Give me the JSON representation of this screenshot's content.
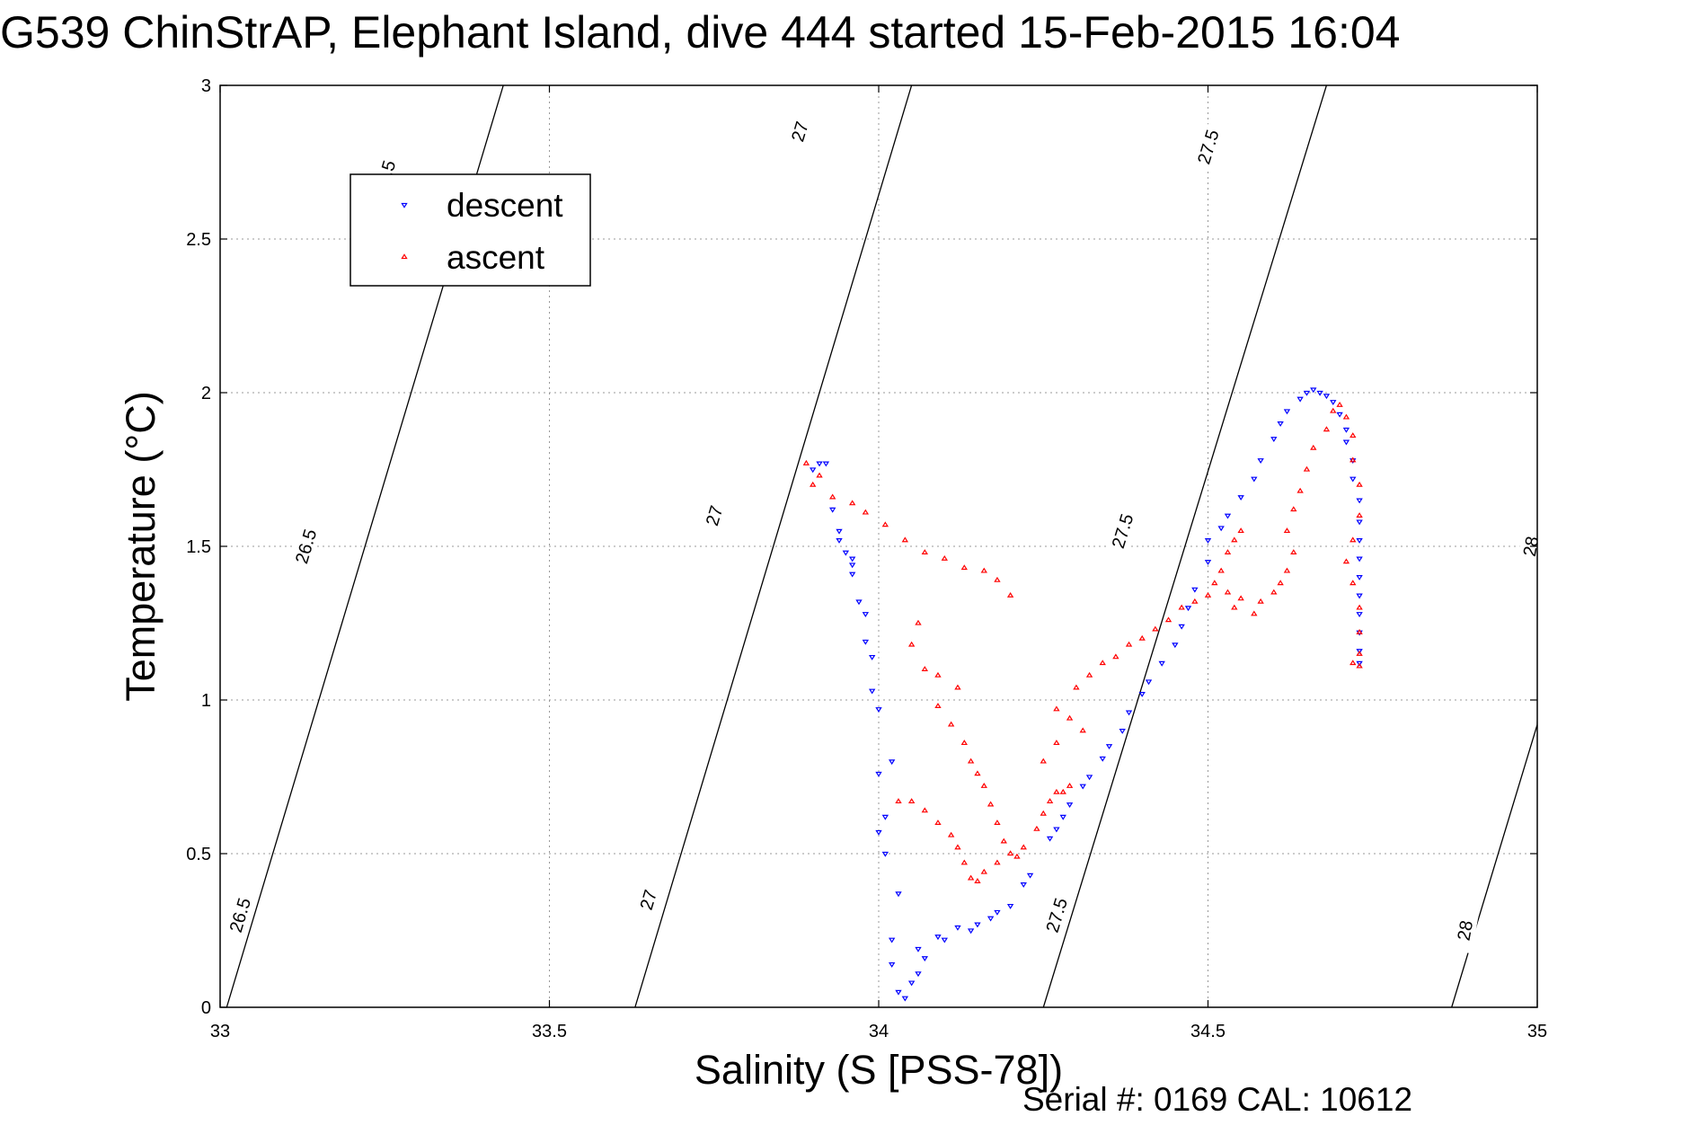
{
  "title": "G539 ChinStrAP, Elephant Island, dive 444 started 15-Feb-2015 16:04",
  "footer": "Serial #: 0169 CAL: 10612",
  "chart_data": {
    "type": "scatter",
    "title": "G539 ChinStrAP, Elephant Island, dive 444 started 15-Feb-2015 16:04",
    "xlabel": "Salinity (S [PSS-78])",
    "ylabel": "Temperature (°C)",
    "xlim": [
      33,
      35
    ],
    "ylim": [
      0,
      3
    ],
    "xticks": [
      33,
      33.5,
      34,
      34.5,
      35
    ],
    "xtick_labels": [
      "33",
      "33.5",
      "34",
      "34.5",
      "35"
    ],
    "yticks": [
      0,
      0.5,
      1,
      1.5,
      2,
      2.5,
      3
    ],
    "ytick_labels": [
      "0",
      "0.5",
      "1",
      "1.5",
      "2",
      "2.5",
      "3"
    ],
    "grid": true,
    "legend": {
      "location": "top-left",
      "entries": [
        "descent",
        "ascent"
      ]
    },
    "colors": {
      "descent": "#0000ff",
      "ascent": "#ff0000",
      "contour": "#000000",
      "grid": "#999999"
    },
    "density_contours": [
      {
        "level": 26.5,
        "label": "26.5",
        "points": [
          [
            33.01,
            0.0
          ],
          [
            33.43,
            3.0
          ]
        ],
        "label_positions": [
          [
            33.03,
            0.3
          ],
          [
            33.13,
            1.5
          ],
          [
            33.25,
            2.7
          ]
        ]
      },
      {
        "level": 27,
        "label": "27",
        "points": [
          [
            33.63,
            0.0
          ],
          [
            34.05,
            3.0
          ]
        ],
        "label_positions": [
          [
            33.65,
            0.35
          ],
          [
            33.75,
            1.6
          ],
          [
            33.88,
            2.85
          ]
        ]
      },
      {
        "level": 27.5,
        "label": "27.5",
        "points": [
          [
            34.25,
            0.0
          ],
          [
            34.68,
            3.0
          ]
        ],
        "label_positions": [
          [
            34.27,
            0.3
          ],
          [
            34.37,
            1.55
          ],
          [
            34.5,
            2.8
          ]
        ]
      },
      {
        "level": 28,
        "label": "28",
        "points": [
          [
            34.87,
            0.0
          ],
          [
            35.0,
            0.92
          ],
          [
            35.01,
            1.62
          ]
        ],
        "label_positions": [
          [
            34.89,
            0.25
          ],
          [
            34.99,
            1.5
          ]
        ]
      }
    ],
    "series": [
      {
        "name": "descent",
        "marker": "triangle-down",
        "points": [
          [
            33.91,
            1.77
          ],
          [
            33.9,
            1.75
          ],
          [
            33.92,
            1.77
          ],
          [
            33.93,
            1.62
          ],
          [
            33.94,
            1.55
          ],
          [
            33.94,
            1.52
          ],
          [
            33.95,
            1.48
          ],
          [
            33.96,
            1.46
          ],
          [
            33.96,
            1.44
          ],
          [
            33.96,
            1.41
          ],
          [
            33.97,
            1.32
          ],
          [
            33.98,
            1.28
          ],
          [
            33.98,
            1.19
          ],
          [
            33.99,
            1.14
          ],
          [
            33.99,
            1.03
          ],
          [
            34.0,
            0.97
          ],
          [
            34.0,
            0.76
          ],
          [
            34.01,
            0.62
          ],
          [
            34.0,
            0.57
          ],
          [
            34.01,
            0.5
          ],
          [
            34.02,
            0.8
          ],
          [
            34.02,
            0.22
          ],
          [
            34.02,
            0.14
          ],
          [
            34.03,
            0.37
          ],
          [
            34.03,
            0.05
          ],
          [
            34.04,
            0.03
          ],
          [
            34.05,
            0.08
          ],
          [
            34.06,
            0.11
          ],
          [
            34.06,
            0.19
          ],
          [
            34.07,
            0.16
          ],
          [
            34.09,
            0.23
          ],
          [
            34.1,
            0.22
          ],
          [
            34.12,
            0.26
          ],
          [
            34.14,
            0.25
          ],
          [
            34.15,
            0.27
          ],
          [
            34.17,
            0.29
          ],
          [
            34.18,
            0.31
          ],
          [
            34.2,
            0.33
          ],
          [
            34.22,
            0.4
          ],
          [
            34.23,
            0.43
          ],
          [
            34.26,
            0.55
          ],
          [
            34.27,
            0.58
          ],
          [
            34.28,
            0.62
          ],
          [
            34.29,
            0.66
          ],
          [
            34.31,
            0.72
          ],
          [
            34.32,
            0.75
          ],
          [
            34.34,
            0.81
          ],
          [
            34.35,
            0.85
          ],
          [
            34.37,
            0.9
          ],
          [
            34.38,
            0.96
          ],
          [
            34.4,
            1.02
          ],
          [
            34.41,
            1.06
          ],
          [
            34.43,
            1.12
          ],
          [
            34.45,
            1.18
          ],
          [
            34.46,
            1.24
          ],
          [
            34.47,
            1.3
          ],
          [
            34.48,
            1.36
          ],
          [
            34.5,
            1.45
          ],
          [
            34.5,
            1.52
          ],
          [
            34.52,
            1.56
          ],
          [
            34.53,
            1.6
          ],
          [
            34.55,
            1.66
          ],
          [
            34.57,
            1.72
          ],
          [
            34.58,
            1.78
          ],
          [
            34.6,
            1.85
          ],
          [
            34.61,
            1.9
          ],
          [
            34.62,
            1.94
          ],
          [
            34.64,
            1.98
          ],
          [
            34.65,
            2.0
          ],
          [
            34.66,
            2.01
          ],
          [
            34.67,
            2.0
          ],
          [
            34.68,
            1.99
          ],
          [
            34.69,
            1.97
          ],
          [
            34.7,
            1.93
          ],
          [
            34.71,
            1.88
          ],
          [
            34.71,
            1.84
          ],
          [
            34.72,
            1.78
          ],
          [
            34.72,
            1.72
          ],
          [
            34.73,
            1.65
          ],
          [
            34.73,
            1.58
          ],
          [
            34.73,
            1.52
          ],
          [
            34.73,
            1.46
          ],
          [
            34.73,
            1.4
          ],
          [
            34.73,
            1.34
          ],
          [
            34.73,
            1.28
          ],
          [
            34.73,
            1.22
          ],
          [
            34.73,
            1.16
          ],
          [
            34.73,
            1.12
          ]
        ]
      },
      {
        "name": "ascent",
        "marker": "triangle-up",
        "points": [
          [
            33.89,
            1.77
          ],
          [
            33.9,
            1.7
          ],
          [
            33.91,
            1.73
          ],
          [
            33.93,
            1.66
          ],
          [
            33.96,
            1.64
          ],
          [
            33.98,
            1.61
          ],
          [
            34.01,
            1.57
          ],
          [
            34.04,
            1.52
          ],
          [
            34.07,
            1.48
          ],
          [
            34.1,
            1.46
          ],
          [
            34.13,
            1.43
          ],
          [
            34.16,
            1.42
          ],
          [
            34.18,
            1.39
          ],
          [
            34.2,
            1.34
          ],
          [
            34.06,
            1.25
          ],
          [
            34.05,
            1.18
          ],
          [
            34.07,
            1.1
          ],
          [
            34.09,
            1.08
          ],
          [
            34.12,
            1.04
          ],
          [
            34.09,
            0.98
          ],
          [
            34.11,
            0.92
          ],
          [
            34.13,
            0.86
          ],
          [
            34.14,
            0.8
          ],
          [
            34.15,
            0.76
          ],
          [
            34.16,
            0.72
          ],
          [
            34.17,
            0.66
          ],
          [
            34.18,
            0.6
          ],
          [
            34.19,
            0.54
          ],
          [
            34.2,
            0.5
          ],
          [
            34.18,
            0.47
          ],
          [
            34.16,
            0.44
          ],
          [
            34.15,
            0.41
          ],
          [
            34.14,
            0.42
          ],
          [
            34.13,
            0.47
          ],
          [
            34.12,
            0.52
          ],
          [
            34.11,
            0.56
          ],
          [
            34.09,
            0.6
          ],
          [
            34.07,
            0.64
          ],
          [
            34.05,
            0.67
          ],
          [
            34.03,
            0.67
          ],
          [
            34.21,
            0.49
          ],
          [
            34.22,
            0.52
          ],
          [
            34.24,
            0.58
          ],
          [
            34.25,
            0.63
          ],
          [
            34.26,
            0.67
          ],
          [
            34.27,
            0.7
          ],
          [
            34.28,
            0.7
          ],
          [
            34.29,
            0.72
          ],
          [
            34.25,
            0.8
          ],
          [
            34.27,
            0.86
          ],
          [
            34.27,
            0.97
          ],
          [
            34.29,
            0.94
          ],
          [
            34.31,
            0.9
          ],
          [
            34.3,
            1.04
          ],
          [
            34.32,
            1.08
          ],
          [
            34.34,
            1.12
          ],
          [
            34.36,
            1.14
          ],
          [
            34.38,
            1.18
          ],
          [
            34.4,
            1.2
          ],
          [
            34.42,
            1.23
          ],
          [
            34.44,
            1.26
          ],
          [
            34.46,
            1.3
          ],
          [
            34.48,
            1.32
          ],
          [
            34.5,
            1.34
          ],
          [
            34.51,
            1.38
          ],
          [
            34.52,
            1.42
          ],
          [
            34.53,
            1.48
          ],
          [
            34.54,
            1.52
          ],
          [
            34.55,
            1.55
          ],
          [
            34.53,
            1.35
          ],
          [
            34.54,
            1.3
          ],
          [
            34.55,
            1.33
          ],
          [
            34.57,
            1.28
          ],
          [
            34.58,
            1.32
          ],
          [
            34.6,
            1.35
          ],
          [
            34.61,
            1.38
          ],
          [
            34.62,
            1.42
          ],
          [
            34.63,
            1.48
          ],
          [
            34.62,
            1.55
          ],
          [
            34.63,
            1.62
          ],
          [
            34.64,
            1.68
          ],
          [
            34.65,
            1.75
          ],
          [
            34.66,
            1.82
          ],
          [
            34.68,
            1.88
          ],
          [
            34.69,
            1.94
          ],
          [
            34.7,
            1.96
          ],
          [
            34.71,
            1.92
          ],
          [
            34.72,
            1.86
          ],
          [
            34.72,
            1.78
          ],
          [
            34.73,
            1.7
          ],
          [
            34.73,
            1.6
          ],
          [
            34.72,
            1.52
          ],
          [
            34.71,
            1.45
          ],
          [
            34.72,
            1.38
          ],
          [
            34.73,
            1.3
          ],
          [
            34.73,
            1.22
          ],
          [
            34.73,
            1.15
          ],
          [
            34.72,
            1.12
          ],
          [
            34.73,
            1.11
          ]
        ]
      }
    ]
  }
}
